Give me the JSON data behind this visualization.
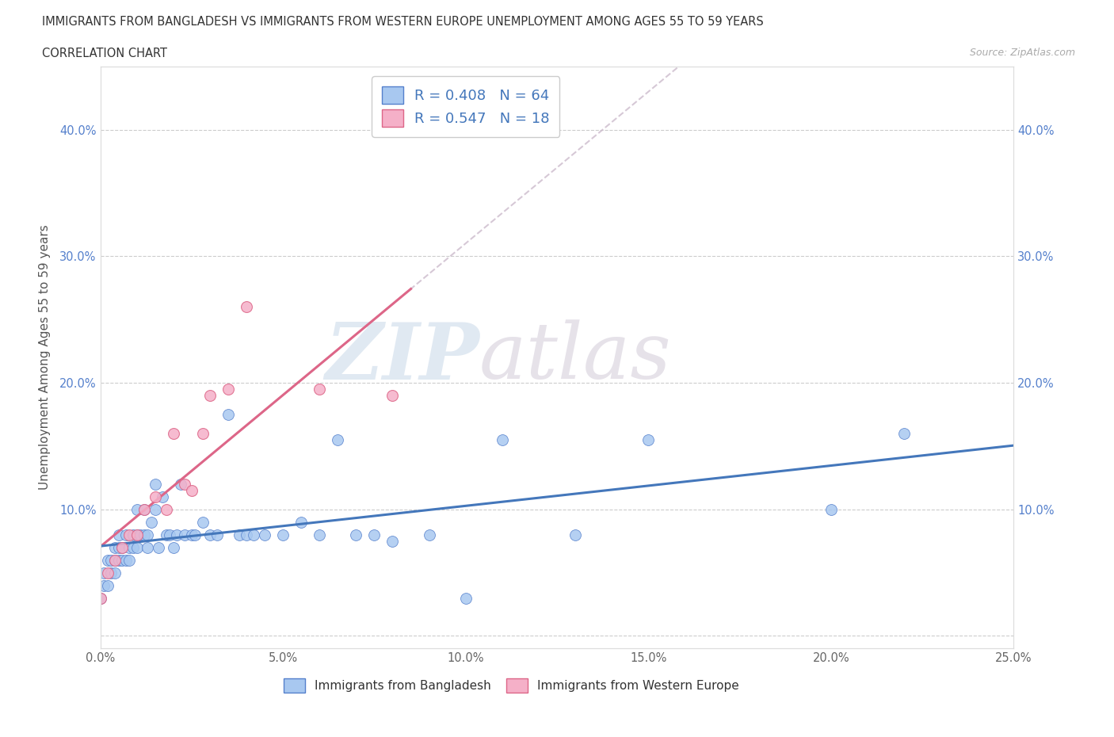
{
  "title_line1": "IMMIGRANTS FROM BANGLADESH VS IMMIGRANTS FROM WESTERN EUROPE UNEMPLOYMENT AMONG AGES 55 TO 59 YEARS",
  "title_line2": "CORRELATION CHART",
  "source": "Source: ZipAtlas.com",
  "ylabel": "Unemployment Among Ages 55 to 59 years",
  "xlim": [
    0.0,
    0.25
  ],
  "ylim": [
    -0.01,
    0.45
  ],
  "xticks": [
    0.0,
    0.05,
    0.1,
    0.15,
    0.2,
    0.25
  ],
  "yticks": [
    0.0,
    0.1,
    0.2,
    0.3,
    0.4
  ],
  "xticklabels": [
    "0.0%",
    "5.0%",
    "10.0%",
    "15.0%",
    "20.0%",
    "25.0%"
  ],
  "yticklabels": [
    "",
    "10.0%",
    "20.0%",
    "30.0%",
    "40.0%"
  ],
  "watermark_zip": "ZIP",
  "watermark_atlas": "atlas",
  "legend_line1": "R = 0.408   N = 64",
  "legend_line2": "R = 0.547   N = 18",
  "color_bd_fill": "#A8C8F0",
  "color_bd_edge": "#5580CC",
  "color_we_fill": "#F5B0C8",
  "color_we_edge": "#DD6688",
  "color_line_bd": "#4477BB",
  "color_line_we": "#DD6688",
  "color_line_we_ext": "#CCBBCC",
  "label_bangladesh": "Immigrants from Bangladesh",
  "label_western_europe": "Immigrants from Western Europe",
  "bd_x": [
    0.0,
    0.001,
    0.001,
    0.002,
    0.002,
    0.003,
    0.003,
    0.004,
    0.004,
    0.004,
    0.005,
    0.005,
    0.005,
    0.006,
    0.006,
    0.007,
    0.007,
    0.008,
    0.008,
    0.009,
    0.009,
    0.01,
    0.01,
    0.01,
    0.011,
    0.012,
    0.012,
    0.013,
    0.013,
    0.014,
    0.015,
    0.015,
    0.016,
    0.017,
    0.018,
    0.019,
    0.02,
    0.021,
    0.022,
    0.023,
    0.025,
    0.026,
    0.028,
    0.03,
    0.032,
    0.035,
    0.038,
    0.04,
    0.042,
    0.045,
    0.05,
    0.055,
    0.06,
    0.065,
    0.07,
    0.075,
    0.08,
    0.09,
    0.1,
    0.11,
    0.13,
    0.15,
    0.2,
    0.22
  ],
  "bd_y": [
    0.03,
    0.04,
    0.05,
    0.04,
    0.06,
    0.05,
    0.06,
    0.06,
    0.05,
    0.07,
    0.06,
    0.07,
    0.08,
    0.06,
    0.07,
    0.08,
    0.06,
    0.07,
    0.06,
    0.08,
    0.07,
    0.07,
    0.08,
    0.1,
    0.08,
    0.08,
    0.1,
    0.08,
    0.07,
    0.09,
    0.1,
    0.12,
    0.07,
    0.11,
    0.08,
    0.08,
    0.07,
    0.08,
    0.12,
    0.08,
    0.08,
    0.08,
    0.09,
    0.08,
    0.08,
    0.175,
    0.08,
    0.08,
    0.08,
    0.08,
    0.08,
    0.09,
    0.08,
    0.155,
    0.08,
    0.08,
    0.075,
    0.08,
    0.03,
    0.155,
    0.08,
    0.155,
    0.1,
    0.16
  ],
  "we_x": [
    0.0,
    0.002,
    0.004,
    0.006,
    0.008,
    0.01,
    0.012,
    0.015,
    0.018,
    0.02,
    0.023,
    0.025,
    0.028,
    0.03,
    0.035,
    0.04,
    0.06,
    0.08
  ],
  "we_y": [
    0.03,
    0.05,
    0.06,
    0.07,
    0.08,
    0.08,
    0.1,
    0.11,
    0.1,
    0.16,
    0.12,
    0.115,
    0.16,
    0.19,
    0.195,
    0.26,
    0.195,
    0.19
  ]
}
